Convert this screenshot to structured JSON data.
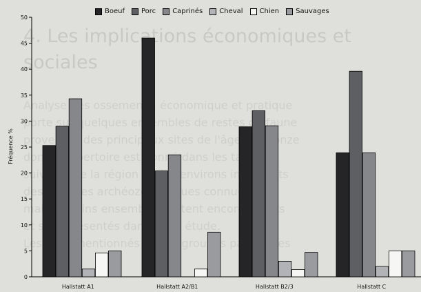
{
  "chart_data": {
    "type": "bar",
    "title": "",
    "ylabel": "Fréquence %",
    "xlabel": "",
    "ylim": [
      0,
      50
    ],
    "yticks": [
      0,
      5,
      10,
      15,
      20,
      25,
      30,
      35,
      40,
      45,
      50
    ],
    "categories": [
      "Hallstatt A1",
      "Hallstatt A2/B1",
      "Hallstatt B2/3",
      "Hallstatt C"
    ],
    "legend_position": "top",
    "series": [
      {
        "name": "Boeuf",
        "color": "#252527",
        "values": [
          25.3,
          46,
          28.9,
          23.9
        ]
      },
      {
        "name": "Porc",
        "color": "#5e5f63",
        "values": [
          29,
          20.4,
          32,
          39.6
        ]
      },
      {
        "name": "Caprinés",
        "color": "#86878b",
        "values": [
          34.3,
          23.5,
          29.1,
          23.9
        ]
      },
      {
        "name": "Cheval",
        "color": "#b2b3b6",
        "values": [
          1.5,
          0,
          3,
          2
        ]
      },
      {
        "name": "Chien",
        "color": "#f6f6f4",
        "values": [
          4.6,
          1.5,
          1.4,
          5
        ]
      },
      {
        "name": "Sauvages",
        "color": "#9a9b9f",
        "values": [
          5,
          8.6,
          4.7,
          5
        ]
      }
    ]
  }
}
